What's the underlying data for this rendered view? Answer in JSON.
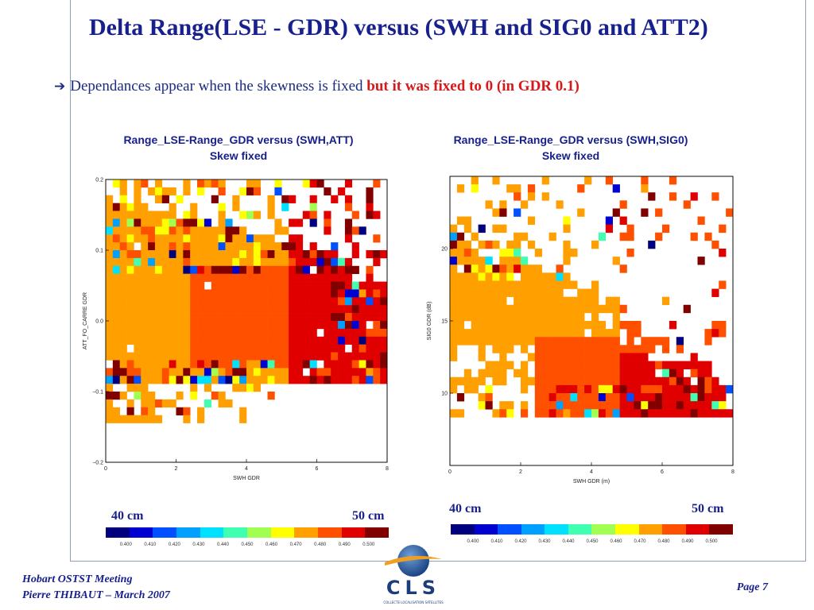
{
  "slide": {
    "title": "Delta Range(LSE - GDR) versus (SWH and SIG0 and ATT2)",
    "bullet_text": "Dependances appear when the skewness is fixed ",
    "bullet_emphasis": "but it was fixed to 0 (in GDR 0.1)",
    "footer_line1": "Hobart OSTST Meeting",
    "footer_line2": "Pierre THIBAUT – March 2007",
    "page_label": "Page 7",
    "logo_text": "CLS",
    "logo_tagline": "COLLECTE LOCALISATION SATELLITES"
  },
  "colorbar": {
    "colors": [
      "#00007f",
      "#0000d0",
      "#0050ff",
      "#00a0ff",
      "#00e0ff",
      "#40ffb0",
      "#a0ff50",
      "#ffff00",
      "#ffa000",
      "#ff5000",
      "#e00000",
      "#800000"
    ],
    "tick_labels": [
      "0.400",
      "0.410",
      "0.420",
      "0.430",
      "0.440",
      "0.450",
      "0.460",
      "0.470",
      "0.480",
      "0.490",
      "0.500"
    ],
    "left_label": "40 cm",
    "right_label": "50 cm"
  },
  "chart_data": [
    {
      "type": "heatmap",
      "title": "Range_LSE-Range_GDR versus (SWH,ATT)",
      "subtitle": "Skew fixed",
      "xlabel": "SWH GDR",
      "ylabel": "ATT_FO_CARRE GDR",
      "xlim": [
        0,
        8
      ],
      "ylim": [
        -0.2,
        0.2
      ],
      "xticks": [
        "0",
        "2",
        "4",
        "6",
        "8"
      ],
      "yticks": [
        "−0.2",
        "−0.1",
        "0.0",
        "0.1",
        "0.2"
      ],
      "ytick_values": [
        -0.2,
        -0.1,
        0.0,
        0.1,
        0.2
      ],
      "value_range": [
        0.4,
        0.5
      ]
    },
    {
      "type": "heatmap",
      "title": "Range_LSE-Range_GDR versus (SWH,SIG0)",
      "subtitle": "Skew fixed",
      "xlabel": "SWH GDR (m)",
      "ylabel": "SIG0 GDR (dB)",
      "xlim": [
        0,
        8
      ],
      "ylim": [
        5,
        25
      ],
      "xticks": [
        "0",
        "2",
        "4",
        "6",
        "8"
      ],
      "yticks": [
        "10",
        "15",
        "20"
      ],
      "ytick_values": [
        10,
        15,
        20
      ],
      "value_range": [
        0.4,
        0.5
      ]
    }
  ]
}
